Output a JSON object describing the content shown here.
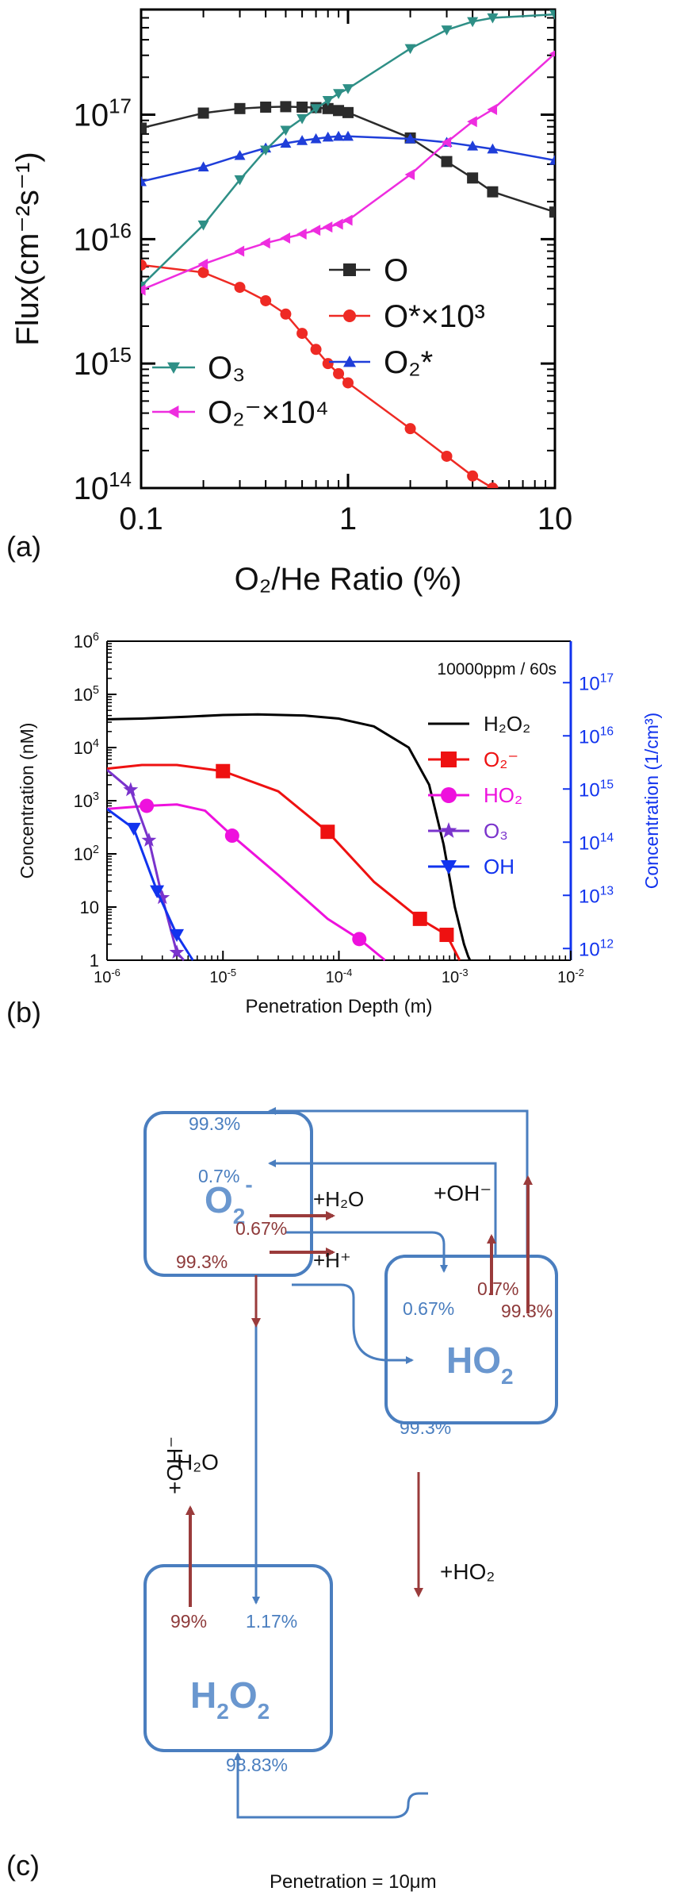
{
  "chart_data": [
    {
      "type": "line",
      "panel_label": "(a)",
      "xscale": "log",
      "yscale": "log",
      "xlim": [
        0.1,
        10
      ],
      "ylim": [
        100000000000000.0,
        7e+17
      ],
      "xlabel": "O₂/He Ratio  (%)",
      "ylabel": "Flux(cm⁻²s⁻¹)",
      "x_ticks": [
        "0.1",
        "1",
        "10"
      ],
      "y_ticks": [
        {
          "v": 100000000000000.0,
          "base": "10",
          "exp": "14"
        },
        {
          "v": 1000000000000000.0,
          "base": "10",
          "exp": "15"
        },
        {
          "v": 1e+16,
          "base": "10",
          "exp": "16"
        },
        {
          "v": 1e+17,
          "base": "10",
          "exp": "17"
        }
      ],
      "legend_upper": [
        {
          "label": "O",
          "series": "O"
        },
        {
          "label": "O*×10³",
          "series": "Ostar"
        },
        {
          "label": "O₂*",
          "series": "O2star"
        }
      ],
      "legend_lower": [
        {
          "label": "O₃",
          "series": "O3"
        },
        {
          "label": "O₂⁻×10⁴",
          "series": "O2minus"
        }
      ],
      "series": [
        {
          "id": "O",
          "color": "#2b2b2b",
          "marker": "square",
          "x": [
            0.1,
            0.2,
            0.3,
            0.4,
            0.5,
            0.6,
            0.7,
            0.8,
            0.9,
            1.0,
            2,
            3,
            4,
            5,
            10
          ],
          "y": [
            7.8e+16,
            1.03e+17,
            1.12e+17,
            1.15e+17,
            1.16e+17,
            1.15e+17,
            1.14e+17,
            1.12e+17,
            1.08e+17,
            1.04e+17,
            6.5e+16,
            4.2e+16,
            3.1e+16,
            2.4e+16,
            1.65e+16
          ]
        },
        {
          "id": "Ostar",
          "color": "#ee2a24",
          "marker": "circle",
          "x": [
            0.1,
            0.2,
            0.3,
            0.4,
            0.5,
            0.6,
            0.7,
            0.8,
            0.9,
            1.0,
            2,
            3,
            4,
            5
          ],
          "y": [
            6200000000000000.0,
            5400000000000000.0,
            4100000000000000.0,
            3200000000000000.0,
            2500000000000000.0,
            1750000000000000.0,
            1300000000000000.0,
            1000000000000000.0,
            830000000000000.0,
            700000000000000.0,
            300000000000000.0,
            180000000000000.0,
            125000000000000.0,
            100000000000000.0
          ]
        },
        {
          "id": "O2star",
          "color": "#1f3ed9",
          "marker": "triangle-up",
          "x": [
            0.1,
            0.2,
            0.3,
            0.4,
            0.5,
            0.6,
            0.7,
            0.8,
            0.9,
            1.0,
            2,
            3,
            4,
            5,
            10
          ],
          "y": [
            2.9e+16,
            3.8e+16,
            4.7e+16,
            5.4e+16,
            5.9e+16,
            6.2e+16,
            6.4e+16,
            6.6e+16,
            6.7e+16,
            6.7e+16,
            6.4e+16,
            6e+16,
            5.6e+16,
            5.3e+16,
            4.3e+16
          ]
        },
        {
          "id": "O3",
          "color": "#2e8f86",
          "marker": "triangle-down",
          "x": [
            0.1,
            0.2,
            0.3,
            0.4,
            0.5,
            0.6,
            0.7,
            0.8,
            0.9,
            1.0,
            2,
            3,
            4,
            5,
            10
          ],
          "y": [
            4200000000000000.0,
            1.3e+16,
            3e+16,
            5.2e+16,
            7.5e+16,
            9.3e+16,
            1.12e+17,
            1.3e+17,
            1.48e+17,
            1.62e+17,
            3.4e+17,
            4.8e+17,
            5.6e+17,
            6e+17,
            6.4e+17
          ]
        },
        {
          "id": "O2minus",
          "color": "#ee2ddf",
          "marker": "triangle-left",
          "x": [
            0.1,
            0.2,
            0.3,
            0.4,
            0.5,
            0.6,
            0.7,
            0.8,
            0.9,
            1.0,
            2,
            3,
            4,
            5,
            10
          ],
          "y": [
            3900000000000000.0,
            6300000000000000.0,
            8000000000000000.0,
            9300000000000000.0,
            1.02e+16,
            1.1e+16,
            1.18e+16,
            1.25e+16,
            1.32e+16,
            1.42e+16,
            3.3e+16,
            6e+16,
            8.8e+16,
            1.1e+17,
            3.1e+17
          ]
        }
      ]
    },
    {
      "type": "line",
      "panel_label": "(b)",
      "xscale": "log",
      "yscale": "log",
      "xlim": [
        1e-06,
        0.01
      ],
      "ylim": [
        1,
        1000000.0
      ],
      "xlabel": "Penetration Depth (m)",
      "ylabel": "Concentration (nM)",
      "ylabel_right": "Concentration (1/cm³)",
      "annotation": "10000ppm / 60s",
      "x_ticks": [
        {
          "v": 1e-06,
          "base": "10",
          "exp": "-6"
        },
        {
          "v": 1e-05,
          "base": "10",
          "exp": "-5"
        },
        {
          "v": 0.0001,
          "base": "10",
          "exp": "-4"
        },
        {
          "v": 0.001,
          "base": "10",
          "exp": "-3"
        },
        {
          "v": 0.01,
          "base": "10",
          "exp": "-2"
        }
      ],
      "y_ticks": [
        {
          "v": 1,
          "base": "1",
          "exp": ""
        },
        {
          "v": 10,
          "base": "10",
          "exp": ""
        },
        {
          "v": 100,
          "base": "10",
          "exp": "2"
        },
        {
          "v": 1000,
          "base": "10",
          "exp": "3"
        },
        {
          "v": 10000,
          "base": "10",
          "exp": "4"
        },
        {
          "v": 100000,
          "base": "10",
          "exp": "5"
        },
        {
          "v": 1000000,
          "base": "10",
          "exp": "6"
        }
      ],
      "y_right_ticks": [
        {
          "v": 1.66,
          "base": "10",
          "exp": "12"
        },
        {
          "v": 16.6,
          "base": "10",
          "exp": "13"
        },
        {
          "v": 166,
          "base": "10",
          "exp": "14"
        },
        {
          "v": 1660,
          "base": "10",
          "exp": "15"
        },
        {
          "v": 16600,
          "base": "10",
          "exp": "16"
        },
        {
          "v": 166000,
          "base": "10",
          "exp": "17"
        }
      ],
      "legend": [
        {
          "label": "H₂O₂",
          "series": "H2O2"
        },
        {
          "label": "O₂⁻",
          "series": "O2m"
        },
        {
          "label": "HO₂",
          "series": "HO2"
        },
        {
          "label": "O₃",
          "series": "O3"
        },
        {
          "label": "OH",
          "series": "OH"
        }
      ],
      "series": [
        {
          "id": "H2O2",
          "color": "#000000",
          "marker": "none",
          "x": [
            1e-06,
            2e-06,
            5e-06,
            1e-05,
            2e-05,
            5e-05,
            0.0001,
            0.0002,
            0.0004,
            0.0006,
            0.0008,
            0.001,
            0.0012,
            0.0013,
            0.00135
          ],
          "y": [
            34000,
            35000,
            38000,
            41000,
            42000,
            40000,
            35000,
            25000,
            10000,
            2000,
            150,
            10,
            2,
            1.2,
            1
          ]
        },
        {
          "id": "O2m",
          "color": "#ee1111",
          "marker": "square",
          "x": [
            1e-06,
            2e-06,
            4e-06,
            1e-05,
            3e-05,
            8e-05,
            0.0002,
            0.0005,
            0.00085,
            0.001,
            0.0011
          ],
          "y": [
            4000,
            4700,
            4700,
            3600,
            1500,
            260,
            30,
            6,
            3,
            1.5,
            1
          ]
        },
        {
          "id": "HO2",
          "color": "#ee11dd",
          "marker": "circle",
          "x": [
            1e-06,
            2.2e-06,
            4e-06,
            7e-06,
            1.2e-05,
            3e-05,
            8e-05,
            0.00015,
            0.00025
          ],
          "y": [
            700,
            800,
            850,
            650,
            220,
            40,
            6,
            2.5,
            1
          ]
        },
        {
          "id": "O3",
          "color": "#7a33cc",
          "marker": "star",
          "x": [
            1e-06,
            1.6e-06,
            2.3e-06,
            3e-06,
            4e-06,
            4.6e-06
          ],
          "y": [
            3800,
            1600,
            180,
            15,
            1.4,
            1
          ]
        },
        {
          "id": "OH",
          "color": "#1133ee",
          "marker": "triangle-down",
          "x": [
            1e-06,
            1.7e-06,
            2.7e-06,
            4e-06,
            5.5e-06
          ],
          "y": [
            700,
            300,
            20,
            3,
            1
          ]
        }
      ]
    }
  ],
  "diagram": {
    "panel_label": "(c)",
    "caption": "Penetration = 10μm",
    "nodes": {
      "o2m": {
        "label_base": "O",
        "label_sub": "2",
        "label_sup": "-"
      },
      "ho2": {
        "label_base": "HO",
        "label_sub": "2",
        "label_sup": ""
      },
      "h2o2": {
        "label_base": "H",
        "label_sub1": "2",
        "label_mid": "O",
        "label_sub2": "2"
      }
    },
    "labels": {
      "p_993_top": "99.3%",
      "p_07_top": "0.7%",
      "p_067_red": "0.67%",
      "p_993_red": "99.3%",
      "r_h2o": "+H₂O",
      "r_hplus": "+H⁺",
      "r_ohm": "+OH⁻",
      "p_067_blue": "0.67%",
      "p_07_red": "0.7%",
      "p_993_red2": "99.3%",
      "p_993_blue": "99.3%",
      "r_oh_vert": "+OH⁻",
      "w_h2o": "H₂O",
      "p_99": "99%",
      "p_117": "1.17%",
      "r_ho2": "+HO₂",
      "p_9883": "98.83%"
    }
  }
}
